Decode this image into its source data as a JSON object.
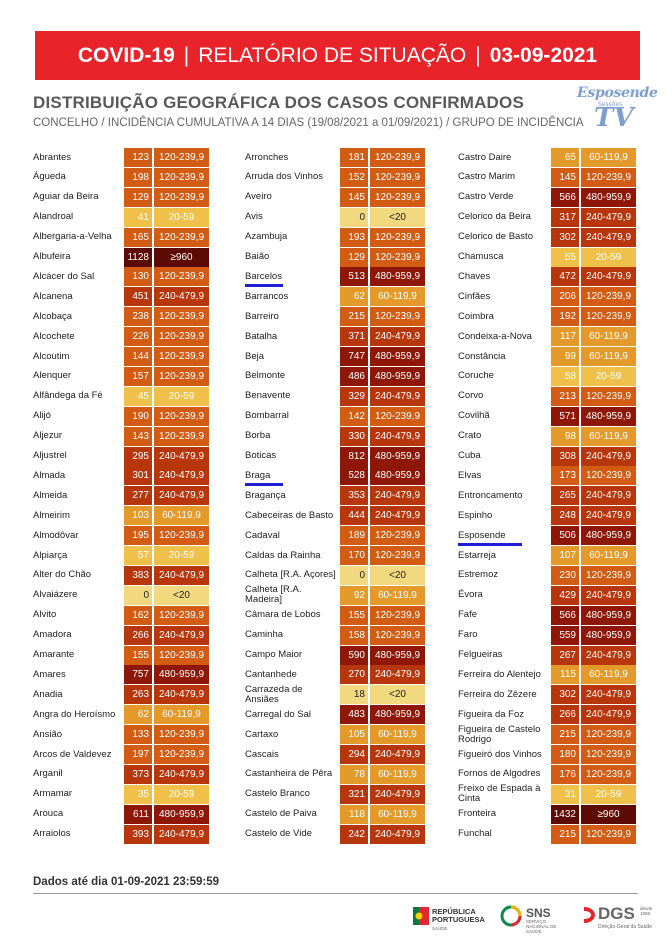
{
  "header": {
    "title_covid": "COVID-19",
    "title_sep": "|",
    "title_report": "RELATÓRIO DE SITUAÇÃO",
    "title_date": "03-09-2021",
    "heading": "DISTRIBUIÇÃO GEOGRÁFICA DOS CASOS CONFIRMADOS",
    "subheading": "CONCELHO / INCIDÊNCIA CUMULATIVA A 14 DIAS (19/08/2021 a 01/09/2021) / GRUPO DE INCIDÊNCIA"
  },
  "watermark": {
    "line1": "Esposende",
    "line2": "Sessões",
    "line3": "TV"
  },
  "colors": {
    "g0": "#f2d980",
    "g20": "#f0c14a",
    "g60": "#e39a2a",
    "g120": "#d25c14",
    "g240": "#b8360c",
    "g480": "#8f1708",
    "g960": "#5e0a04",
    "highlight": "#1f1fd6"
  },
  "columns": [
    [
      {
        "name": "Abrantes",
        "value": "123",
        "group": "120-239,9"
      },
      {
        "name": "Águeda",
        "value": "198",
        "group": "120-239,9"
      },
      {
        "name": "Aguiar da Beira",
        "value": "129",
        "group": "120-239,9"
      },
      {
        "name": "Alandroal",
        "value": "41",
        "group": "20-59"
      },
      {
        "name": "Albergaria-a-Velha",
        "value": "165",
        "group": "120-239,9"
      },
      {
        "name": "Albufeira",
        "value": "1128",
        "group": "≥960"
      },
      {
        "name": "Alcácer do Sal",
        "value": "130",
        "group": "120-239,9"
      },
      {
        "name": "Alcanena",
        "value": "451",
        "group": "240-479,9"
      },
      {
        "name": "Alcobaça",
        "value": "238",
        "group": "120-239,9"
      },
      {
        "name": "Alcochete",
        "value": "226",
        "group": "120-239,9"
      },
      {
        "name": "Alcoutim",
        "value": "144",
        "group": "120-239,9"
      },
      {
        "name": "Alenquer",
        "value": "157",
        "group": "120-239,9"
      },
      {
        "name": "Alfândega da Fé",
        "value": "45",
        "group": "20-59"
      },
      {
        "name": "Alijó",
        "value": "190",
        "group": "120-239,9"
      },
      {
        "name": "Aljezur",
        "value": "143",
        "group": "120-239,9"
      },
      {
        "name": "Aljustrel",
        "value": "295",
        "group": "240-479,9"
      },
      {
        "name": "Almada",
        "value": "301",
        "group": "240-479,9"
      },
      {
        "name": "Almeida",
        "value": "277",
        "group": "240-479,9"
      },
      {
        "name": "Almeirim",
        "value": "103",
        "group": "60-119,9"
      },
      {
        "name": "Almodôvar",
        "value": "195",
        "group": "120-239,9"
      },
      {
        "name": "Alpiarça",
        "value": "57",
        "group": "20-59"
      },
      {
        "name": "Alter do Chão",
        "value": "383",
        "group": "240-479,9"
      },
      {
        "name": "Alvaiázere",
        "value": "0",
        "group": "<20"
      },
      {
        "name": "Alvito",
        "value": "162",
        "group": "120-239,9"
      },
      {
        "name": "Amadora",
        "value": "266",
        "group": "240-479,9"
      },
      {
        "name": "Amarante",
        "value": "155",
        "group": "120-239,9"
      },
      {
        "name": "Amares",
        "value": "757",
        "group": "480-959,9"
      },
      {
        "name": "Anadia",
        "value": "263",
        "group": "240-479,9"
      },
      {
        "name": "Angra do Heroísmo",
        "value": "62",
        "group": "60-119,9"
      },
      {
        "name": "Ansião",
        "value": "133",
        "group": "120-239,9"
      },
      {
        "name": "Arcos de Valdevez",
        "value": "197",
        "group": "120-239,9"
      },
      {
        "name": "Arganil",
        "value": "373",
        "group": "240-479,9"
      },
      {
        "name": "Armamar",
        "value": "35",
        "group": "20-59"
      },
      {
        "name": "Arouca",
        "value": "611",
        "group": "480-959,9"
      },
      {
        "name": "Arraiolos",
        "value": "393",
        "group": "240-479,9"
      }
    ],
    [
      {
        "name": "Arronches",
        "value": "181",
        "group": "120-239,9"
      },
      {
        "name": "Arruda dos Vinhos",
        "value": "152",
        "group": "120-239,9"
      },
      {
        "name": "Aveiro",
        "value": "145",
        "group": "120-239,9"
      },
      {
        "name": "Avis",
        "value": "0",
        "group": "<20"
      },
      {
        "name": "Azambuja",
        "value": "193",
        "group": "120-239,9"
      },
      {
        "name": "Baião",
        "value": "129",
        "group": "120-239,9"
      },
      {
        "name": "Barcelos",
        "value": "513",
        "group": "480-959,9",
        "highlight": true
      },
      {
        "name": "Barrancos",
        "value": "62",
        "group": "60-119,9"
      },
      {
        "name": "Barreiro",
        "value": "215",
        "group": "120-239,9"
      },
      {
        "name": "Batalha",
        "value": "371",
        "group": "240-479,9"
      },
      {
        "name": "Beja",
        "value": "747",
        "group": "480-959,9"
      },
      {
        "name": "Belmonte",
        "value": "486",
        "group": "480-959,9"
      },
      {
        "name": "Benavente",
        "value": "329",
        "group": "240-479,9"
      },
      {
        "name": "Bombarral",
        "value": "142",
        "group": "120-239,9"
      },
      {
        "name": "Borba",
        "value": "330",
        "group": "240-479,9"
      },
      {
        "name": "Boticas",
        "value": "812",
        "group": "480-959,9"
      },
      {
        "name": "Braga",
        "value": "528",
        "group": "480-959,9",
        "highlight": true
      },
      {
        "name": "Bragança",
        "value": "353",
        "group": "240-479,9"
      },
      {
        "name": "Cabeceiras de Basto",
        "value": "444",
        "group": "240-479,9"
      },
      {
        "name": "Cadaval",
        "value": "189",
        "group": "120-239,9"
      },
      {
        "name": "Caldas da Rainha",
        "value": "170",
        "group": "120-239,9"
      },
      {
        "name": "Calheta [R.A. Açores]",
        "value": "0",
        "group": "<20"
      },
      {
        "name": "Calheta [R.A. Madeira]",
        "value": "92",
        "group": "60-119,9"
      },
      {
        "name": "Câmara de Lobos",
        "value": "155",
        "group": "120-239,9"
      },
      {
        "name": "Caminha",
        "value": "158",
        "group": "120-239,9"
      },
      {
        "name": "Campo Maior",
        "value": "590",
        "group": "480-959,9"
      },
      {
        "name": "Cantanhede",
        "value": "270",
        "group": "240-479,9"
      },
      {
        "name": "Carrazeda de Ansiães",
        "value": "18",
        "group": "<20"
      },
      {
        "name": "Carregal do Sal",
        "value": "483",
        "group": "480-959,9"
      },
      {
        "name": "Cartaxo",
        "value": "105",
        "group": "60-119,9"
      },
      {
        "name": "Cascais",
        "value": "294",
        "group": "240-479,9"
      },
      {
        "name": "Castanheira de Pêra",
        "value": "78",
        "group": "60-119,9"
      },
      {
        "name": "Castelo Branco",
        "value": "321",
        "group": "240-479,9"
      },
      {
        "name": "Castelo de Paiva",
        "value": "118",
        "group": "60-119,9"
      },
      {
        "name": "Castelo de Vide",
        "value": "242",
        "group": "240-479,9"
      }
    ],
    [
      {
        "name": "Castro Daire",
        "value": "65",
        "group": "60-119,9"
      },
      {
        "name": "Castro Marim",
        "value": "145",
        "group": "120-239,9"
      },
      {
        "name": "Castro Verde",
        "value": "566",
        "group": "480-959,9"
      },
      {
        "name": "Celorico da Beira",
        "value": "317",
        "group": "240-479,9"
      },
      {
        "name": "Celorico de Basto",
        "value": "302",
        "group": "240-479,9"
      },
      {
        "name": "Chamusca",
        "value": "55",
        "group": "20-59"
      },
      {
        "name": "Chaves",
        "value": "472",
        "group": "240-479,9"
      },
      {
        "name": "Cinfães",
        "value": "206",
        "group": "120-239,9"
      },
      {
        "name": "Coimbra",
        "value": "192",
        "group": "120-239,9"
      },
      {
        "name": "Condeixa-a-Nova",
        "value": "117",
        "group": "60-119,9"
      },
      {
        "name": "Constância",
        "value": "99",
        "group": "60-119,9"
      },
      {
        "name": "Coruche",
        "value": "58",
        "group": "20-59"
      },
      {
        "name": "Corvo",
        "value": "213",
        "group": "120-239,9"
      },
      {
        "name": "Covilhã",
        "value": "571",
        "group": "480-959,9"
      },
      {
        "name": "Crato",
        "value": "98",
        "group": "60-119,9"
      },
      {
        "name": "Cuba",
        "value": "308",
        "group": "240-479,9"
      },
      {
        "name": "Elvas",
        "value": "173",
        "group": "120-239,9"
      },
      {
        "name": "Entroncamento",
        "value": "265",
        "group": "240-479,9"
      },
      {
        "name": "Espinho",
        "value": "248",
        "group": "240-479,9"
      },
      {
        "name": "Esposende",
        "value": "506",
        "group": "480-959,9",
        "highlight": true
      },
      {
        "name": "Estarreja",
        "value": "107",
        "group": "60-119,9"
      },
      {
        "name": "Estremoz",
        "value": "230",
        "group": "120-239,9"
      },
      {
        "name": "Évora",
        "value": "429",
        "group": "240-479,9"
      },
      {
        "name": "Fafe",
        "value": "566",
        "group": "480-959,9"
      },
      {
        "name": "Faro",
        "value": "559",
        "group": "480-959,9"
      },
      {
        "name": "Felgueiras",
        "value": "267",
        "group": "240-479,9"
      },
      {
        "name": "Ferreira do Alentejo",
        "value": "115",
        "group": "60-119,9"
      },
      {
        "name": "Ferreira do Zêzere",
        "value": "302",
        "group": "240-479,9"
      },
      {
        "name": "Figueira da Foz",
        "value": "266",
        "group": "240-479,9"
      },
      {
        "name": "Figueira de Castelo Rodrigo",
        "value": "215",
        "group": "120-239,9"
      },
      {
        "name": "Figueiró dos Vinhos",
        "value": "180",
        "group": "120-239,9"
      },
      {
        "name": "Fornos de Algodres",
        "value": "176",
        "group": "120-239,9"
      },
      {
        "name": "Freixo de Espada à Cinta",
        "value": "31",
        "group": "20-59"
      },
      {
        "name": "Fronteira",
        "value": "1432",
        "group": "≥960"
      },
      {
        "name": "Funchal",
        "value": "215",
        "group": "120-239,9"
      }
    ]
  ],
  "footer": {
    "date_note": "Dados até dia 01-09-2021 23:59:59",
    "logo_rp_line1": "REPÚBLICA",
    "logo_rp_line2": "PORTUGUESA",
    "logo_rp_line3": "SAÚDE",
    "logo_sns": "SNS",
    "logo_sns_sub": "SERVIÇO NACIONAL DE SAÚDE",
    "logo_dgs": "DGS",
    "logo_dgs_since": "desde 1899",
    "logo_dgs_sub": "Direção-Geral da Saúde"
  }
}
